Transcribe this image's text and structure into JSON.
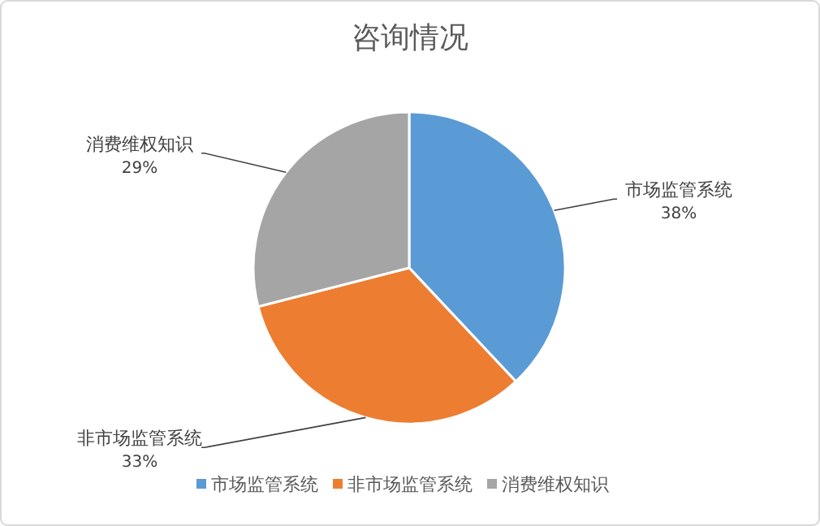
{
  "chart_data": {
    "type": "pie",
    "title": "咨询情况",
    "categories": [
      "市场监管系统",
      "非市场监管系统",
      "消费维权知识"
    ],
    "values": [
      38,
      33,
      29
    ],
    "colors": [
      "#5b9bd5",
      "#ed7d31",
      "#a5a5a5"
    ],
    "value_labels": [
      "38%",
      "33%",
      "29%"
    ],
    "legend": "bottom"
  }
}
